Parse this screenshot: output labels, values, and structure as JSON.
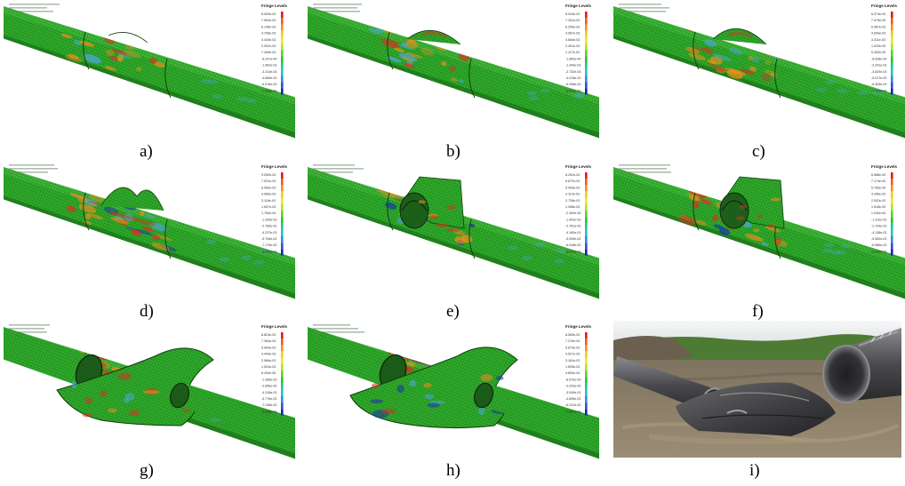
{
  "panels": [
    {
      "caption": "a)",
      "legend_title": "Fringe Levels",
      "stage": "intact pipe with local dent",
      "legend_values": [
        "8.000e-03",
        "7.500e-03",
        "6.146e-03",
        "4.795e-03",
        "3.443e-03",
        "2.092e-03",
        "7.405e-04",
        "-6.107e-04",
        "-1.962e-03",
        "-3.314e-03",
        "-4.665e-03",
        "-6.016e-03",
        "-7.368e-03"
      ]
    },
    {
      "caption": "b)",
      "legend_title": "Fringe Levels",
      "stage": "bulging",
      "legend_values": [
        "8.044e-03",
        "7.331e-03",
        "6.250e-03",
        "4.967e-03",
        "3.684e-03",
        "2.401e-03",
        "1.117e-03",
        "-1.660e-04",
        "-1.449e-03",
        "-2.732e-03",
        "-4.015e-03",
        "-5.298e-03",
        "-6.581e-03"
      ]
    },
    {
      "caption": "c)",
      "legend_title": "Fringe Levels",
      "stage": "ridge forming",
      "legend_values": [
        "8.074e-03",
        "7.475e-03",
        "6.087e-03",
        "4.699e-03",
        "3.311e-03",
        "1.923e-03",
        "5.352e-04",
        "-8.528e-04",
        "-2.241e-03",
        "-3.629e-03",
        "-5.017e-03",
        "-6.405e-03",
        "-7.793e-03"
      ]
    },
    {
      "caption": "d)",
      "legend_title": "Fringe Levels",
      "stage": "rupture initiation",
      "legend_values": [
        "9.000e-03",
        "7.531e-03",
        "6.060e-03",
        "4.589e-03",
        "3.118e-03",
        "1.647e-03",
        "1.760e-04",
        "-1.295e-03",
        "-2.766e-03",
        "-4.237e-03",
        "-5.708e-03",
        "-7.179e-03",
        "-8.650e-03"
      ]
    },
    {
      "caption": "e)",
      "legend_title": "Fringe Levels",
      "stage": "flap opening",
      "legend_values": [
        "8.251e-03",
        "6.872e-03",
        "5.493e-03",
        "4.114e-03",
        "2.735e-03",
        "1.356e-03",
        "-2.300e-05",
        "-1.402e-03",
        "-2.781e-03",
        "-4.160e-03",
        "-5.539e-03",
        "-6.918e-03",
        "-8.297e-03"
      ]
    },
    {
      "caption": "f)",
      "legend_title": "Fringe Levels",
      "stage": "flap folding",
      "legend_values": [
        "8.588e-03",
        "7.174e-03",
        "5.760e-03",
        "4.346e-03",
        "2.932e-03",
        "1.518e-03",
        "1.040e-04",
        "-1.310e-03",
        "-2.724e-03",
        "-4.138e-03",
        "-5.552e-03",
        "-6.966e-03",
        "-8.380e-03"
      ]
    },
    {
      "caption": "g)",
      "legend_title": "Fringe Levels",
      "stage": "pipe severed",
      "legend_values": [
        "8.824e-03",
        "7.364e-03",
        "5.904e-03",
        "4.444e-03",
        "2.984e-03",
        "1.524e-03",
        "6.400e-05",
        "-1.396e-03",
        "-2.856e-03",
        "-4.316e-03",
        "-5.776e-03",
        "-7.236e-03",
        "-8.696e-03"
      ]
    },
    {
      "caption": "h)",
      "legend_title": "Fringe Levels",
      "stage": "final torn state",
      "legend_values": [
        "8.565e-03",
        "7.219e-03",
        "5.873e-03",
        "4.527e-03",
        "3.181e-03",
        "1.835e-03",
        "4.890e-04",
        "-8.570e-04",
        "-2.203e-03",
        "-3.549e-03",
        "-4.895e-03",
        "-6.241e-03",
        "-7.587e-03"
      ]
    },
    {
      "caption": "i)",
      "stage": "photograph of ruptured pipeline"
    }
  ],
  "colors": {
    "pipe": "#2eab2a",
    "pipe_dark": "#1f7d1c",
    "pipe_light": "#47c23f",
    "hot": "#d9311f",
    "warm": "#f08d1d",
    "cool": "#4fa6e0",
    "cold": "#1b2fb3",
    "soil": "#8a7a63",
    "grass": "#3f6a2d",
    "sky": "#eef1f3",
    "metal": "#5a5a5e"
  }
}
